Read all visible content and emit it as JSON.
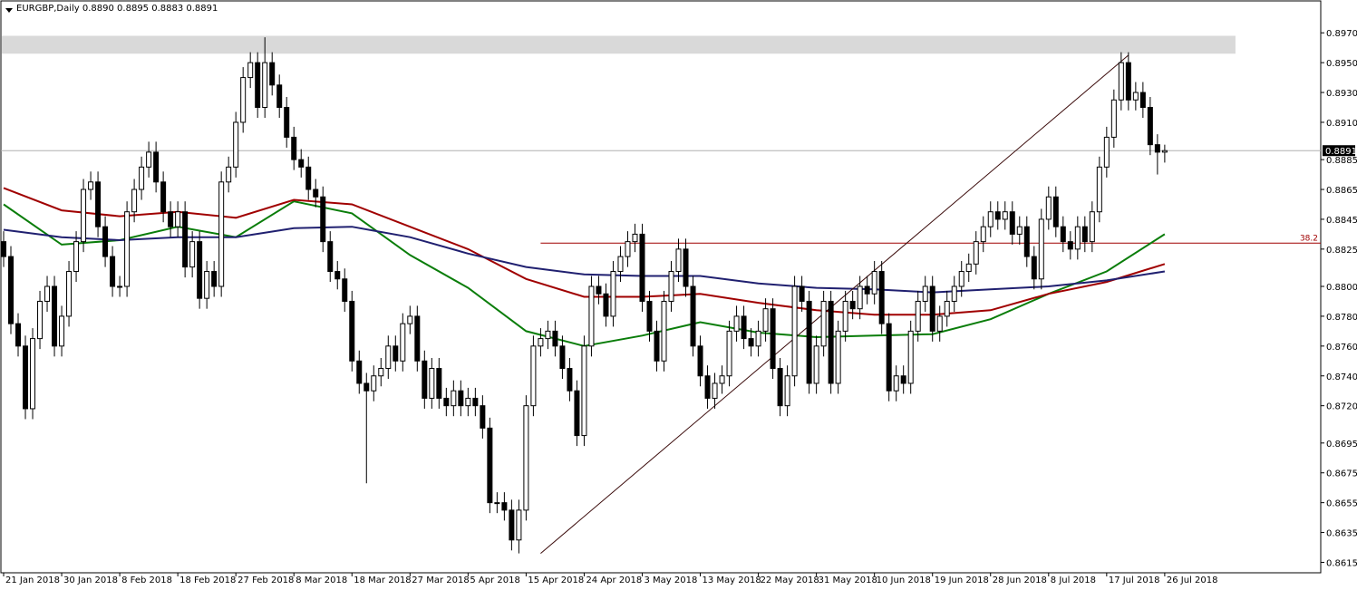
{
  "chart_data": {
    "type": "candlestick",
    "title": "EURGBP,Daily  0.8890 0.8895 0.8883 0.8891",
    "open": [
      0.883,
      0.882,
      0.8775,
      0.876,
      0.8718,
      0.8765,
      0.879,
      0.88,
      0.876,
      0.878,
      0.881,
      0.883,
      0.8865,
      0.887,
      0.884,
      0.882,
      0.88,
      0.88,
      0.885,
      0.8865,
      0.888,
      0.889,
      0.887,
      0.885,
      0.884,
      0.885,
      0.8813,
      0.883,
      0.8792,
      0.881,
      0.88,
      0.887,
      0.888,
      0.891,
      0.894,
      0.895,
      0.892,
      0.895,
      0.8935,
      0.892,
      0.89,
      0.8885,
      0.888,
      0.8865,
      0.886,
      0.883,
      0.881,
      0.8805,
      0.879,
      0.875,
      0.8735,
      0.873,
      0.874,
      0.8745,
      0.876,
      0.875,
      0.8775,
      0.878,
      0.875,
      0.8725,
      0.8745,
      0.8725,
      0.872,
      0.873,
      0.872,
      0.8725,
      0.872,
      0.8705,
      0.8655,
      0.8655,
      0.865,
      0.863,
      0.865,
      0.872,
      0.876,
      0.8765,
      0.877,
      0.876,
      0.8745,
      0.873,
      0.87,
      0.876,
      0.88,
      0.8795,
      0.878,
      0.881,
      0.882,
      0.883,
      0.8835,
      0.879,
      0.877,
      0.875,
      0.879,
      0.881,
      0.8825,
      0.88,
      0.876,
      0.874,
      0.8725,
      0.8735,
      0.874,
      0.877,
      0.878,
      0.8765,
      0.876,
      0.877,
      0.8785,
      0.8745,
      0.872,
      0.874,
      0.88,
      0.879,
      0.8735,
      0.876,
      0.879,
      0.8735,
      0.877,
      0.879,
      0.8785,
      0.88,
      0.8795,
      0.881,
      0.8775,
      0.873,
      0.874,
      0.8735,
      0.877,
      0.879,
      0.88,
      0.877,
      0.878,
      0.879,
      0.88,
      0.881,
      0.8815,
      0.883,
      0.884,
      0.885,
      0.8845,
      0.885,
      0.8835,
      0.884,
      0.882,
      0.8805,
      0.8845,
      0.886,
      0.884,
      0.883,
      0.8825,
      0.884,
      0.883,
      0.885,
      0.888,
      0.89,
      0.8925,
      0.895,
      0.8925,
      0.893,
      0.892,
      0.8895,
      0.889
    ],
    "high": [
      0.8837,
      0.8827,
      0.8782,
      0.8767,
      0.8772,
      0.8797,
      0.8807,
      0.8807,
      0.8787,
      0.8817,
      0.8837,
      0.8872,
      0.8877,
      0.8877,
      0.8847,
      0.8827,
      0.8807,
      0.8857,
      0.8872,
      0.8887,
      0.8897,
      0.8897,
      0.8877,
      0.8857,
      0.8857,
      0.8857,
      0.8837,
      0.8837,
      0.8817,
      0.8817,
      0.8877,
      0.8887,
      0.8917,
      0.8947,
      0.8957,
      0.8957,
      0.8967,
      0.8957,
      0.8942,
      0.8927,
      0.8907,
      0.8892,
      0.8887,
      0.8872,
      0.8867,
      0.8837,
      0.8817,
      0.8812,
      0.8797,
      0.8757,
      0.8742,
      0.8747,
      0.8752,
      0.8767,
      0.8767,
      0.8782,
      0.8787,
      0.8787,
      0.8757,
      0.8752,
      0.8752,
      0.8732,
      0.8737,
      0.8737,
      0.8732,
      0.8732,
      0.8727,
      0.8712,
      0.8662,
      0.8662,
      0.8657,
      0.8657,
      0.8727,
      0.8767,
      0.8772,
      0.8777,
      0.8777,
      0.8767,
      0.8752,
      0.8737,
      0.8767,
      0.8807,
      0.8807,
      0.8802,
      0.8817,
      0.8827,
      0.8837,
      0.8842,
      0.8842,
      0.8797,
      0.8777,
      0.8797,
      0.8817,
      0.8832,
      0.8832,
      0.8807,
      0.8767,
      0.8747,
      0.8742,
      0.8747,
      0.8777,
      0.8787,
      0.8787,
      0.8772,
      0.8777,
      0.8792,
      0.8792,
      0.8752,
      0.8747,
      0.8807,
      0.8807,
      0.8797,
      0.8767,
      0.8797,
      0.8797,
      0.8777,
      0.8797,
      0.8797,
      0.8807,
      0.8807,
      0.8817,
      0.8817,
      0.8782,
      0.8747,
      0.8747,
      0.8777,
      0.8797,
      0.8807,
      0.8807,
      0.8787,
      0.8797,
      0.8807,
      0.8817,
      0.8822,
      0.8837,
      0.8847,
      0.8857,
      0.8857,
      0.8857,
      0.8857,
      0.8847,
      0.8847,
      0.8827,
      0.8852,
      0.8867,
      0.8867,
      0.8847,
      0.8837,
      0.8847,
      0.8847,
      0.8857,
      0.8887,
      0.8907,
      0.8932,
      0.8957,
      0.8957,
      0.8937,
      0.8937,
      0.8927,
      0.8902,
      0.8895
    ],
    "low": [
      0.8813,
      0.8768,
      0.8753,
      0.8711,
      0.8711,
      0.8758,
      0.8783,
      0.8753,
      0.8753,
      0.8773,
      0.8803,
      0.8823,
      0.8858,
      0.8833,
      0.8813,
      0.8793,
      0.8793,
      0.8793,
      0.8843,
      0.8858,
      0.8873,
      0.8863,
      0.8843,
      0.8833,
      0.8833,
      0.8806,
      0.8806,
      0.8785,
      0.8785,
      0.8793,
      0.8793,
      0.8863,
      0.8873,
      0.8903,
      0.8933,
      0.8913,
      0.8913,
      0.8928,
      0.8913,
      0.8893,
      0.8878,
      0.8873,
      0.8858,
      0.8853,
      0.8823,
      0.8803,
      0.8798,
      0.8783,
      0.8743,
      0.8728,
      0.8668,
      0.8723,
      0.8733,
      0.8738,
      0.8743,
      0.8743,
      0.8768,
      0.8743,
      0.8718,
      0.8718,
      0.8718,
      0.8713,
      0.8713,
      0.8713,
      0.8713,
      0.8713,
      0.8698,
      0.8648,
      0.8648,
      0.8643,
      0.8623,
      0.8621,
      0.8643,
      0.8713,
      0.8753,
      0.8758,
      0.8753,
      0.8738,
      0.8723,
      0.8693,
      0.8693,
      0.8753,
      0.8788,
      0.8773,
      0.8773,
      0.8803,
      0.8813,
      0.8823,
      0.8783,
      0.8763,
      0.8743,
      0.8743,
      0.8783,
      0.8803,
      0.8793,
      0.8753,
      0.8733,
      0.8718,
      0.8718,
      0.8728,
      0.8733,
      0.8763,
      0.8758,
      0.8753,
      0.8753,
      0.8763,
      0.8738,
      0.8713,
      0.8713,
      0.8733,
      0.8783,
      0.8728,
      0.8728,
      0.8753,
      0.8728,
      0.8728,
      0.8763,
      0.8778,
      0.8778,
      0.8788,
      0.8788,
      0.8768,
      0.8723,
      0.8723,
      0.8728,
      0.8728,
      0.8763,
      0.8783,
      0.8763,
      0.8763,
      0.8773,
      0.8783,
      0.8793,
      0.8803,
      0.8808,
      0.8823,
      0.8833,
      0.8838,
      0.8838,
      0.8828,
      0.8828,
      0.8813,
      0.8798,
      0.8798,
      0.8838,
      0.8833,
      0.8823,
      0.8818,
      0.8818,
      0.8823,
      0.8823,
      0.8843,
      0.8873,
      0.8893,
      0.8918,
      0.8918,
      0.8918,
      0.8913,
      0.8888,
      0.8875,
      0.8883
    ],
    "close": [
      0.882,
      0.8775,
      0.876,
      0.8718,
      0.8765,
      0.879,
      0.88,
      0.876,
      0.878,
      0.881,
      0.883,
      0.8865,
      0.887,
      0.884,
      0.882,
      0.88,
      0.88,
      0.885,
      0.8865,
      0.888,
      0.889,
      0.887,
      0.885,
      0.884,
      0.885,
      0.8813,
      0.883,
      0.8792,
      0.881,
      0.88,
      0.887,
      0.888,
      0.891,
      0.894,
      0.895,
      0.892,
      0.895,
      0.8935,
      0.892,
      0.89,
      0.8885,
      0.888,
      0.8865,
      0.886,
      0.883,
      0.881,
      0.8805,
      0.879,
      0.875,
      0.8735,
      0.873,
      0.874,
      0.8745,
      0.876,
      0.875,
      0.8775,
      0.878,
      0.875,
      0.8725,
      0.8745,
      0.8725,
      0.872,
      0.873,
      0.872,
      0.8725,
      0.872,
      0.8705,
      0.8655,
      0.8655,
      0.865,
      0.863,
      0.865,
      0.872,
      0.876,
      0.8765,
      0.877,
      0.876,
      0.8745,
      0.873,
      0.87,
      0.876,
      0.88,
      0.8795,
      0.878,
      0.881,
      0.882,
      0.883,
      0.8835,
      0.879,
      0.877,
      0.875,
      0.879,
      0.881,
      0.8825,
      0.88,
      0.876,
      0.874,
      0.8725,
      0.8735,
      0.874,
      0.877,
      0.878,
      0.8765,
      0.876,
      0.877,
      0.8785,
      0.8745,
      0.872,
      0.874,
      0.88,
      0.879,
      0.8735,
      0.876,
      0.879,
      0.8735,
      0.877,
      0.879,
      0.8785,
      0.88,
      0.8795,
      0.881,
      0.8775,
      0.873,
      0.874,
      0.8735,
      0.877,
      0.879,
      0.88,
      0.877,
      0.878,
      0.879,
      0.88,
      0.881,
      0.8815,
      0.883,
      0.884,
      0.885,
      0.8845,
      0.885,
      0.8835,
      0.884,
      0.882,
      0.8805,
      0.8845,
      0.886,
      0.884,
      0.883,
      0.8825,
      0.884,
      0.883,
      0.885,
      0.888,
      0.89,
      0.8925,
      0.895,
      0.8925,
      0.893,
      0.892,
      0.8895,
      0.889,
      0.8891
    ],
    "xlim": [
      -0.5,
      181.5
    ],
    "ylim": [
      0.8608,
      0.8992
    ],
    "yticks": [
      {
        "value": 0.897,
        "label": "0.8970"
      },
      {
        "value": 0.895,
        "label": "0.8950"
      },
      {
        "value": 0.893,
        "label": "0.8930"
      },
      {
        "value": 0.891,
        "label": "0.8910"
      },
      {
        "value": 0.8885,
        "label": "0.8885"
      },
      {
        "value": 0.8865,
        "label": "0.8865"
      },
      {
        "value": 0.8845,
        "label": "0.8845"
      },
      {
        "value": 0.8825,
        "label": "0.8825"
      },
      {
        "value": 0.88,
        "label": "0.8800"
      },
      {
        "value": 0.878,
        "label": "0.8780"
      },
      {
        "value": 0.876,
        "label": "0.8760"
      },
      {
        "value": 0.874,
        "label": "0.8740"
      },
      {
        "value": 0.872,
        "label": "0.8720"
      },
      {
        "value": 0.8695,
        "label": "0.8695"
      },
      {
        "value": 0.8675,
        "label": "0.8675"
      },
      {
        "value": 0.8655,
        "label": "0.8655"
      },
      {
        "value": 0.8635,
        "label": "0.8635"
      },
      {
        "value": 0.8615,
        "label": "0.8615"
      }
    ],
    "xticks": [
      {
        "value": 0,
        "label": "21 Jan 2018"
      },
      {
        "value": 8,
        "label": "30 Jan 2018"
      },
      {
        "value": 16,
        "label": "8 Feb 2018"
      },
      {
        "value": 24,
        "label": "18 Feb 2018"
      },
      {
        "value": 32,
        "label": "27 Feb 2018"
      },
      {
        "value": 40,
        "label": "8 Mar 2018"
      },
      {
        "value": 48,
        "label": "18 Mar 2018"
      },
      {
        "value": 56,
        "label": "27 Mar 2018"
      },
      {
        "value": 64,
        "label": "5 Apr 2018"
      },
      {
        "value": 72,
        "label": "15 Apr 2018"
      },
      {
        "value": 80,
        "label": "24 Apr 2018"
      },
      {
        "value": 88,
        "label": "3 May 2018"
      },
      {
        "value": 96,
        "label": "13 May 2018"
      },
      {
        "value": 104,
        "label": "22 May 2018"
      },
      {
        "value": 112,
        "label": "31 May 2018"
      },
      {
        "value": 120,
        "label": "10 Jun 2018"
      },
      {
        "value": 128,
        "label": "19 Jun 2018"
      },
      {
        "value": 136,
        "label": "28 Jun 2018"
      },
      {
        "value": 144,
        "label": "8 Jul 2018"
      },
      {
        "value": 152,
        "label": "17 Jul 2018"
      },
      {
        "value": 160,
        "label": "26 Jul 2018"
      }
    ],
    "ma_x": [
      0,
      8,
      16,
      24,
      32,
      40,
      48,
      56,
      64,
      72,
      80,
      88,
      96,
      104,
      112,
      120,
      128,
      136,
      144,
      152,
      160
    ],
    "series": [
      {
        "color": "#0a7d0a",
        "values": [
          0.8855,
          0.8828,
          0.8831,
          0.884,
          0.8833,
          0.8857,
          0.8849,
          0.8821,
          0.8799,
          0.877,
          0.876,
          0.8767,
          0.8776,
          0.8769,
          0.8766,
          0.8767,
          0.8768,
          0.8778,
          0.8795,
          0.881,
          0.8835
        ]
      },
      {
        "color": "#a00000",
        "values": [
          0.8866,
          0.8851,
          0.8847,
          0.885,
          0.8846,
          0.8858,
          0.8855,
          0.884,
          0.8825,
          0.8805,
          0.8793,
          0.8793,
          0.8795,
          0.8789,
          0.8784,
          0.8781,
          0.8781,
          0.8784,
          0.8795,
          0.8803,
          0.8815
        ]
      },
      {
        "color": "#202070",
        "values": [
          0.8838,
          0.8833,
          0.8831,
          0.8833,
          0.8833,
          0.8839,
          0.884,
          0.8833,
          0.8822,
          0.8813,
          0.8808,
          0.8807,
          0.8807,
          0.8802,
          0.8799,
          0.8798,
          0.8796,
          0.8798,
          0.88,
          0.8804,
          0.881
        ]
      }
    ],
    "current_price": {
      "value": 0.8891,
      "label": "0.8891"
    },
    "trendline": {
      "x": [
        74,
        155
      ],
      "y": [
        0.8621,
        0.8955
      ]
    },
    "fib": {
      "label": "38.2",
      "value": 0.8829,
      "x": 74
    },
    "zone": {
      "x": [
        -0.5,
        169.75
      ],
      "y": [
        0.8956,
        0.8968
      ]
    }
  }
}
